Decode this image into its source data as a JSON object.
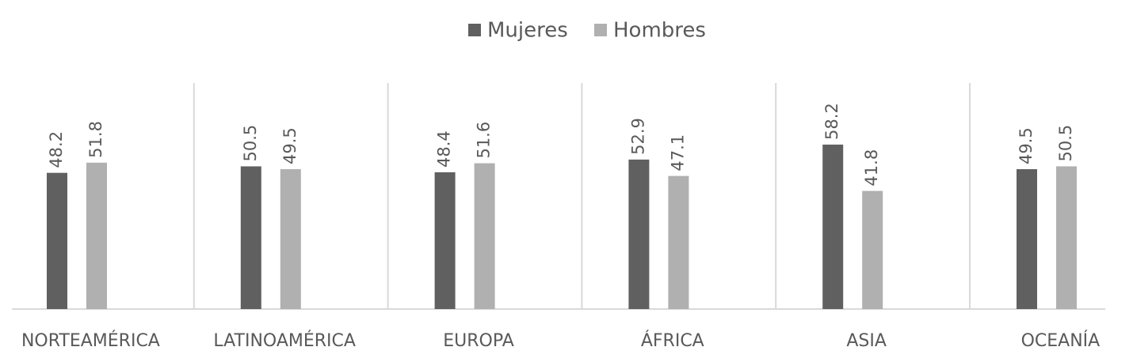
{
  "chart_data": {
    "type": "bar",
    "categories": [
      "NORTEAMÉRICA",
      "LATINOAMÉRICA",
      "EUROPA",
      "ÁFRICA",
      "ASIA",
      "OCEANÍA"
    ],
    "series": [
      {
        "name": "Mujeres",
        "color": "#606060",
        "values": [
          48.2,
          50.5,
          48.4,
          52.9,
          58.2,
          49.5
        ]
      },
      {
        "name": "Hombres",
        "color": "#b0b0b0",
        "values": [
          51.8,
          49.5,
          51.6,
          47.1,
          41.8,
          50.5
        ]
      }
    ],
    "ylim": [
      0,
      80
    ]
  }
}
